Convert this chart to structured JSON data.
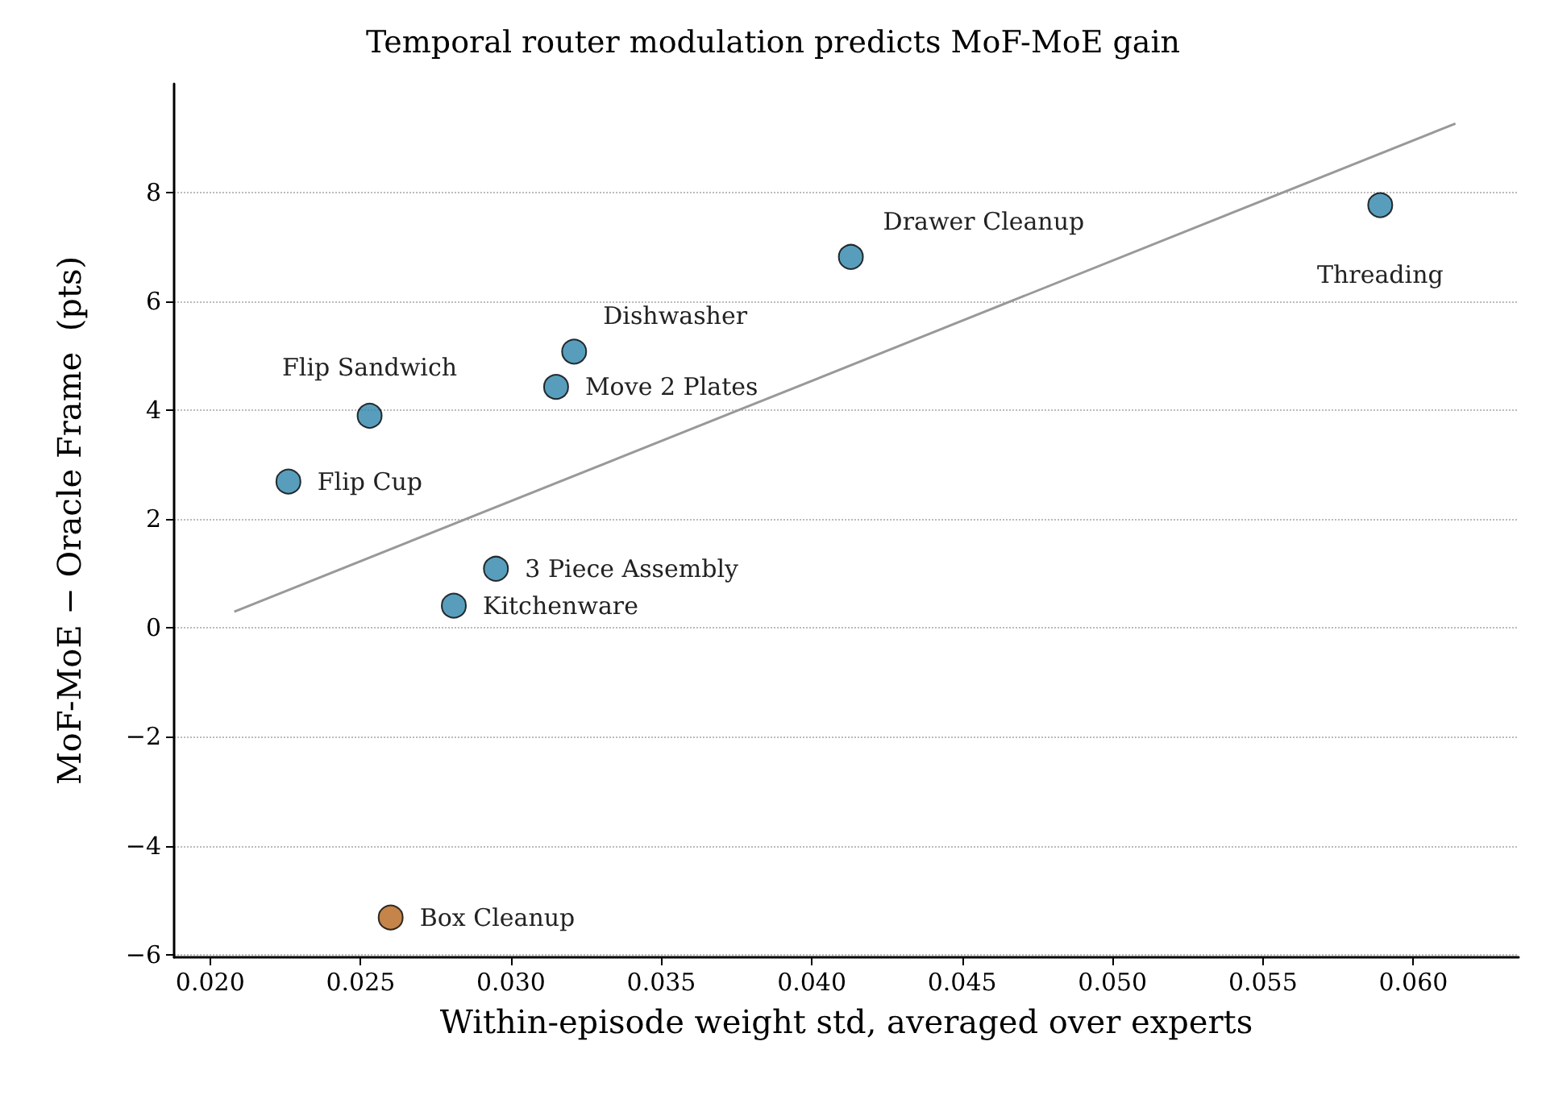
{
  "chart_data": {
    "type": "scatter",
    "title": "Temporal router modulation predicts MoF-MoE gain",
    "xlabel": "Within-episode weight std, averaged over experts",
    "ylabel": "MoF-MoE − Oracle Frame  (pts)",
    "series": [
      {
        "color": "#2e86ab",
        "x": [
          0.0226,
          0.0253,
          0.0281,
          0.0295,
          0.0315,
          0.0321,
          0.0413,
          0.0589
        ],
        "values": [
          2.69,
          3.9,
          0.41,
          1.09,
          4.43,
          5.08,
          6.82,
          7.77
        ]
      },
      {
        "color": "#b5651d",
        "x": [
          0.026
        ],
        "values": [
          -5.32
        ]
      },
      {
        "type": "line",
        "marker": "none",
        "color": "#999999",
        "x": [
          0.0208,
          0.0614
        ],
        "values": [
          0.3,
          9.27
        ]
      }
    ],
    "annotations": [
      {
        "text": "Flip Cup",
        "x": 0.0226,
        "y": 2.69
      },
      {
        "text": "Flip Sandwich",
        "x": 0.0253,
        "y": 3.9
      },
      {
        "text": "Kitchenware",
        "x": 0.0281,
        "y": 0.41
      },
      {
        "text": "3 Piece Assembly",
        "x": 0.0295,
        "y": 1.09
      },
      {
        "text": "Move 2 Plates",
        "x": 0.0315,
        "y": 4.43
      },
      {
        "text": "Dishwasher",
        "x": 0.0321,
        "y": 5.08
      },
      {
        "text": "Drawer Cleanup",
        "x": 0.0413,
        "y": 6.82
      },
      {
        "text": "Threading",
        "x": 0.0589,
        "y": 7.77
      },
      {
        "text": "Box Cleanup",
        "x": 0.026,
        "y": -5.32
      }
    ],
    "xlim": [
      0.0188,
      0.0635
    ],
    "xticks": [
      {
        "value": 0.02,
        "label": "0.020"
      },
      {
        "value": 0.025,
        "label": "0.025"
      },
      {
        "value": 0.03,
        "label": "0.030"
      },
      {
        "value": 0.035,
        "label": "0.035"
      },
      {
        "value": 0.04,
        "label": "0.040"
      },
      {
        "value": 0.045,
        "label": "0.045"
      },
      {
        "value": 0.05,
        "label": "0.050"
      },
      {
        "value": 0.055,
        "label": "0.055"
      },
      {
        "value": 0.06,
        "label": "0.060"
      }
    ],
    "ylim": [
      -6.05,
      10.0
    ],
    "yticks": [
      {
        "value": -6,
        "label": "−6"
      },
      {
        "value": -4,
        "label": "−4"
      },
      {
        "value": -2,
        "label": "−2"
      },
      0,
      2,
      4,
      6,
      8
    ],
    "grid": "y",
    "marker": "circle"
  }
}
